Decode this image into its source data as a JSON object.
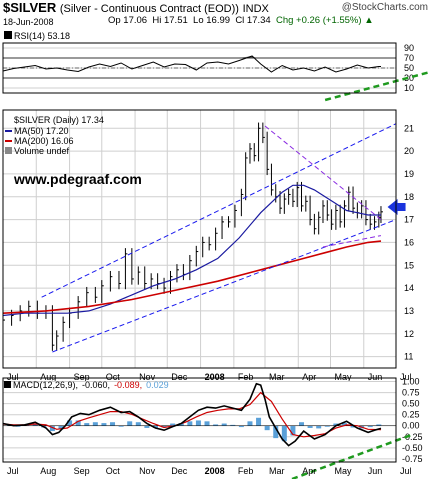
{
  "header": {
    "symbol": "$SILVER",
    "description": "(Silver - Continuous Contract (EOD))",
    "exchange": "INDX",
    "brand": "@StockCharts.com",
    "date": "18-Jun-2008",
    "open": "Op 17.06",
    "high": "Hi 17.51",
    "low": "Lo 16.99",
    "close": "Cl 17.34",
    "change": "Chg +0.26 (+1.55%)",
    "change_arrow": "▲"
  },
  "watermark": "www.pdegraaf.com",
  "colors": {
    "price_bar": "#000000",
    "ma50": "#1a1aa0",
    "ma200": "#cc0000",
    "channel": "#1a1aee",
    "triangle": "#8a2be2",
    "support_green": "#1f9a1f",
    "arrow": "#1a33dd",
    "macd_line": "#000000",
    "signal_line": "#cc0000",
    "histogram": "#5aa0d8",
    "rsi_fill": "#777777",
    "grid": "#cfcfcf"
  },
  "chart_data": [
    {
      "type": "line",
      "title": "RSI(14) 53.18",
      "legend": [
        "RSI(14) 53.18"
      ],
      "ylim": [
        0,
        100
      ],
      "y_ticks": [
        10,
        30,
        50,
        70,
        90
      ],
      "overbought": 70,
      "oversold": 30,
      "last_value": 53.18,
      "series": [
        {
          "name": "RSI(14)",
          "x": [
            0,
            10,
            20,
            30,
            40,
            50,
            60,
            70,
            80,
            90,
            100,
            110,
            120,
            130,
            140,
            150,
            160,
            170,
            180,
            190,
            200,
            210,
            220,
            232,
            236,
            240,
            250,
            260,
            270,
            280,
            290,
            300,
            310,
            320,
            330,
            340,
            350,
            352
          ],
          "values": [
            44,
            49,
            52,
            55,
            48,
            50,
            46,
            43,
            52,
            58,
            53,
            60,
            48,
            55,
            62,
            52,
            58,
            57,
            46,
            60,
            62,
            58,
            65,
            74,
            66,
            58,
            42,
            55,
            46,
            50,
            44,
            52,
            42,
            48,
            56,
            50,
            53,
            53
          ]
        }
      ]
    },
    {
      "type": "line",
      "title": "$SILVER (Daily) 17.34",
      "legend": [
        "$SILVER (Daily) 17.34",
        "MA(50) 17.20",
        "MA(200) 16.06",
        "Volume undef"
      ],
      "ylim": [
        10.5,
        21.8
      ],
      "y_ticks": [
        11,
        12,
        13,
        14,
        15,
        16,
        17,
        18,
        19,
        20,
        21
      ],
      "x_ticks": [
        "Jul",
        "Aug",
        "Sep",
        "Oct",
        "Nov",
        "Dec",
        "2008",
        "Feb",
        "Mar",
        "Apr",
        "May",
        "Jun",
        "Jul"
      ],
      "x_tick_days": [
        0,
        31,
        62,
        92,
        123,
        153,
        184,
        215,
        244,
        275,
        305,
        336,
        366
      ],
      "series": [
        {
          "name": "$SILVER",
          "x": [
            0,
            8,
            16,
            24,
            32,
            40,
            46,
            50,
            56,
            62,
            70,
            78,
            86,
            92,
            100,
            108,
            114,
            120,
            126,
            132,
            138,
            144,
            150,
            156,
            162,
            168,
            174,
            180,
            186,
            192,
            198,
            204,
            210,
            216,
            222,
            226,
            230,
            234,
            238,
            242,
            246,
            250,
            254,
            258,
            262,
            266,
            270,
            274,
            278,
            282,
            286,
            290,
            294,
            298,
            302,
            306,
            310,
            314,
            318,
            322,
            326,
            330,
            334,
            338,
            342,
            346,
            350,
            352
          ],
          "values": [
            12.6,
            12.8,
            13.0,
            13.2,
            12.9,
            13.0,
            11.5,
            11.9,
            12.5,
            12.9,
            13.4,
            13.8,
            13.6,
            14.1,
            14.5,
            14.2,
            15.5,
            14.4,
            14.7,
            14.2,
            14.4,
            14.2,
            14.0,
            14.5,
            14.8,
            14.6,
            15.2,
            15.6,
            16.0,
            15.9,
            16.4,
            16.9,
            16.9,
            17.4,
            18.1,
            19.7,
            20.1,
            19.8,
            21.0,
            20.6,
            19.2,
            18.3,
            18.0,
            17.5,
            17.9,
            18.1,
            17.8,
            18.4,
            17.6,
            17.8,
            17.0,
            16.6,
            17.1,
            17.6,
            17.2,
            16.8,
            17.4,
            16.9,
            17.6,
            18.2,
            17.5,
            17.3,
            17.6,
            17.0,
            16.8,
            16.9,
            17.1,
            17.34
          ]
        },
        {
          "name": "MA(50)",
          "x": [
            0,
            20,
            40,
            60,
            80,
            100,
            120,
            140,
            160,
            180,
            200,
            220,
            240,
            260,
            270,
            280,
            290,
            300,
            310,
            320,
            330,
            340,
            352
          ],
          "values": [
            12.8,
            12.9,
            12.9,
            12.9,
            13.0,
            13.3,
            13.7,
            14.1,
            14.4,
            14.8,
            15.3,
            16.2,
            17.3,
            18.2,
            18.5,
            18.5,
            18.3,
            18.0,
            17.7,
            17.4,
            17.3,
            17.2,
            17.2
          ]
        },
        {
          "name": "MA(200)",
          "x": [
            0,
            40,
            80,
            120,
            160,
            200,
            240,
            280,
            300,
            320,
            340,
            352
          ],
          "values": [
            12.9,
            13.0,
            13.2,
            13.5,
            13.9,
            14.3,
            14.8,
            15.3,
            15.55,
            15.8,
            16.0,
            16.06
          ]
        }
      ],
      "annotations": [
        {
          "kind": "channel_upper",
          "x": [
            36,
            366
          ],
          "values": [
            13.6,
            21.2
          ]
        },
        {
          "kind": "channel_lower",
          "x": [
            46,
            366
          ],
          "values": [
            11.2,
            17.0
          ]
        },
        {
          "kind": "triangle_top",
          "x": [
            244,
            352
          ],
          "values": [
            21.1,
            17.0
          ]
        },
        {
          "kind": "triangle_bottom",
          "x": [
            298,
            352
          ],
          "values": [
            15.8,
            16.3
          ]
        },
        {
          "kind": "price_arrow",
          "x": [
            360
          ],
          "values": [
            17.55
          ]
        }
      ]
    },
    {
      "type": "line",
      "title": "MACD(12,26,9) -0.060, -0.089, 0.029",
      "legend": [
        "MACD(12,26,9)",
        "-0.060",
        "-0.089",
        "0.029"
      ],
      "ylim": [
        -0.82,
        1.08
      ],
      "y_ticks": [
        -0.75,
        -0.5,
        -0.25,
        0.0,
        0.25,
        0.5,
        0.75,
        1.0
      ],
      "x_ticks": [
        "Jul",
        "Aug",
        "Sep",
        "Oct",
        "Nov",
        "Dec",
        "2008",
        "Feb",
        "Mar",
        "Apr",
        "May",
        "Jun",
        "Jul"
      ],
      "x_tick_days": [
        0,
        31,
        62,
        92,
        123,
        153,
        184,
        215,
        244,
        275,
        305,
        336,
        366
      ],
      "series": [
        {
          "name": "MACD",
          "x": [
            0,
            10,
            20,
            30,
            40,
            46,
            52,
            58,
            64,
            72,
            80,
            90,
            100,
            110,
            118,
            126,
            134,
            142,
            150,
            158,
            166,
            174,
            182,
            190,
            198,
            206,
            214,
            222,
            230,
            236,
            240,
            244,
            248,
            254,
            260,
            266,
            272,
            280,
            290,
            300,
            310,
            320,
            330,
            340,
            346,
            352
          ],
          "values": [
            0.05,
            0.0,
            0.02,
            0.08,
            -0.05,
            -0.2,
            -0.15,
            0.0,
            0.2,
            0.28,
            0.25,
            0.35,
            0.42,
            0.3,
            0.32,
            0.2,
            0.05,
            -0.05,
            -0.1,
            -0.02,
            0.05,
            0.2,
            0.35,
            0.42,
            0.4,
            0.45,
            0.4,
            0.35,
            0.6,
            0.95,
            0.92,
            0.6,
            0.2,
            -0.05,
            -0.3,
            -0.45,
            -0.35,
            -0.12,
            -0.3,
            -0.2,
            0.0,
            0.1,
            -0.05,
            -0.15,
            -0.1,
            -0.06
          ]
        },
        {
          "name": "Signal",
          "x": [
            0,
            10,
            20,
            30,
            40,
            50,
            60,
            70,
            80,
            90,
            100,
            110,
            120,
            130,
            140,
            150,
            160,
            170,
            180,
            190,
            200,
            210,
            220,
            230,
            240,
            250,
            260,
            270,
            280,
            290,
            300,
            310,
            320,
            330,
            340,
            352
          ],
          "values": [
            0.04,
            0.02,
            0.02,
            0.04,
            0.02,
            -0.08,
            -0.05,
            0.1,
            0.18,
            0.25,
            0.32,
            0.32,
            0.26,
            0.15,
            0.05,
            -0.04,
            0.0,
            0.08,
            0.2,
            0.3,
            0.35,
            0.38,
            0.38,
            0.48,
            0.75,
            0.55,
            0.15,
            -0.2,
            -0.25,
            -0.22,
            -0.18,
            -0.05,
            0.02,
            0.0,
            -0.08,
            -0.09
          ]
        },
        {
          "name": "Histogram",
          "x": [
            6,
            14,
            22,
            30,
            38,
            46,
            54,
            62,
            70,
            78,
            86,
            94,
            102,
            110,
            118,
            126,
            134,
            142,
            150,
            158,
            166,
            174,
            182,
            190,
            198,
            206,
            214,
            222,
            230,
            238,
            246,
            254,
            262,
            270,
            278,
            286,
            294,
            302,
            310,
            318,
            326,
            334,
            342,
            350
          ],
          "values": [
            0.02,
            0.0,
            0.03,
            0.05,
            -0.04,
            -0.12,
            -0.08,
            0.12,
            0.12,
            0.06,
            0.08,
            0.06,
            0.08,
            0.0,
            0.1,
            0.08,
            -0.05,
            -0.05,
            -0.04,
            0.05,
            0.06,
            0.1,
            0.12,
            0.1,
            0.03,
            0.05,
            0.02,
            -0.03,
            0.1,
            0.18,
            -0.1,
            -0.28,
            -0.35,
            -0.22,
            0.08,
            -0.05,
            -0.06,
            -0.02,
            0.05,
            0.06,
            -0.04,
            -0.06,
            -0.03,
            0.03
          ]
        }
      ]
    }
  ]
}
